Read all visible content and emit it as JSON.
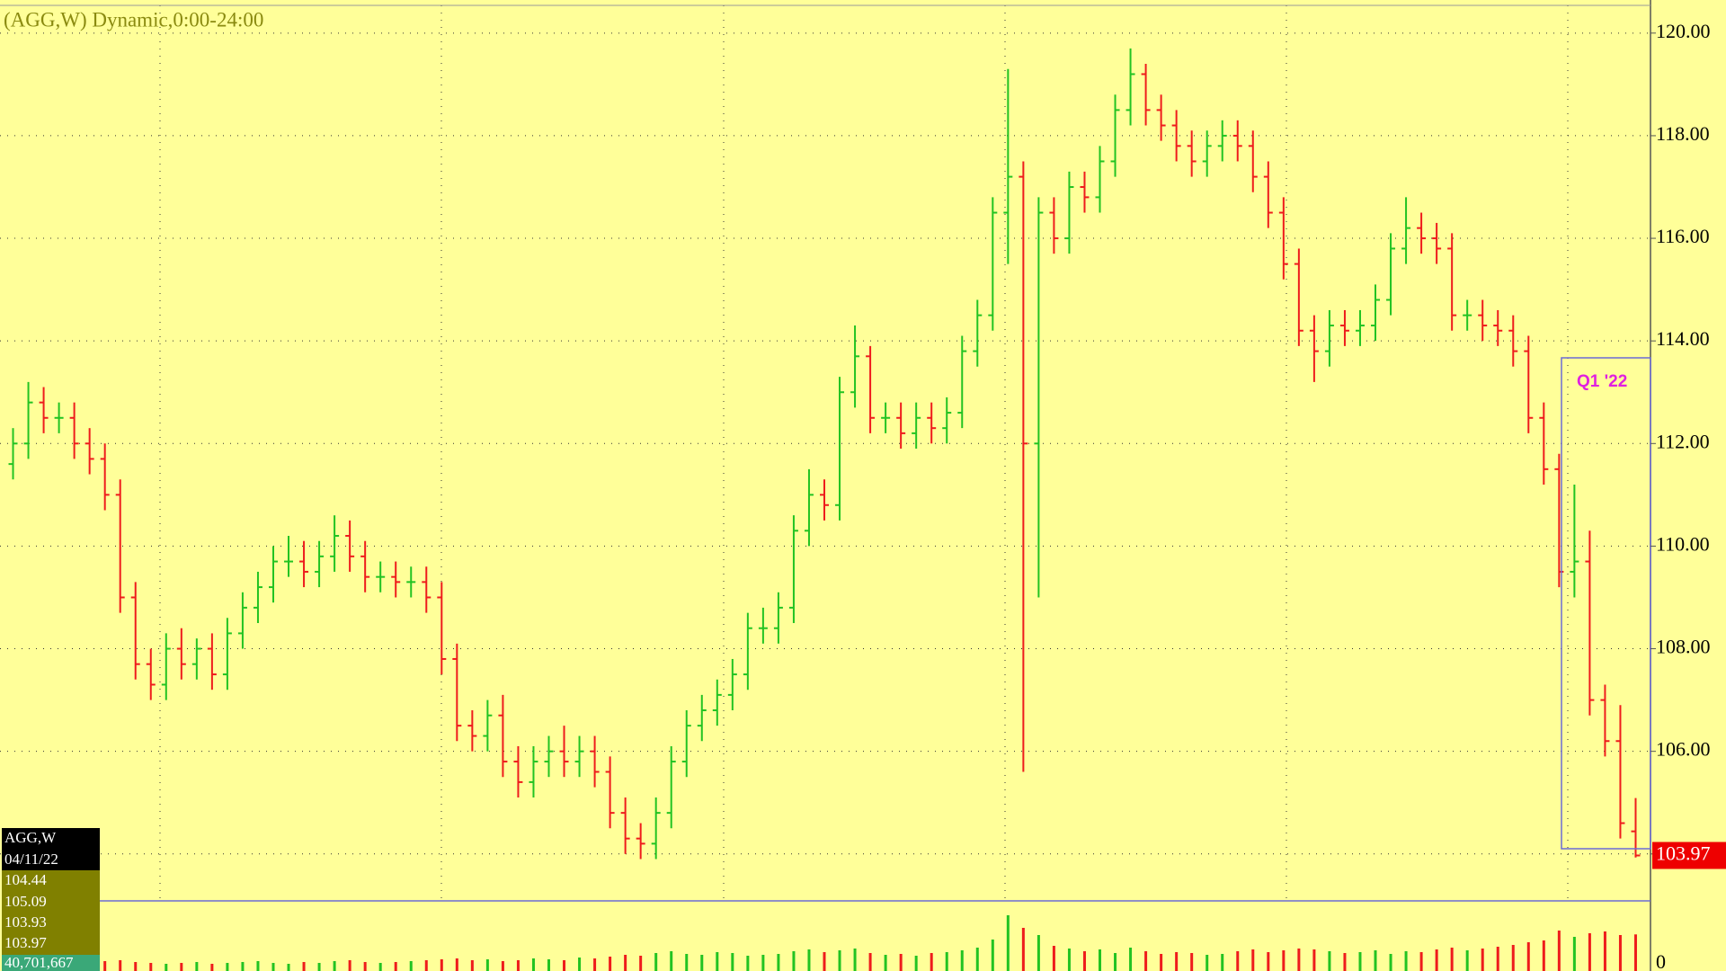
{
  "chart_data": {
    "type": "ohlc",
    "title": "(AGG,W) Dynamic,0:00-24:00",
    "annotation": "Q1 '22",
    "info_box": {
      "symbol": "AGG,W",
      "date": "04/11/22",
      "volume_label": "40,701,667"
    },
    "up_color": "#22c322",
    "down_color": "#ee1c1c",
    "grid": true,
    "ylim": [
      103.12,
      120.54
    ],
    "yticks": [
      {
        "value": 104,
        "label": "104.00"
      },
      {
        "value": 106,
        "label": "106.00"
      },
      {
        "value": 108,
        "label": "108.00"
      },
      {
        "value": 110,
        "label": "110.00"
      },
      {
        "value": 112,
        "label": "112.00"
      },
      {
        "value": 114,
        "label": "114.00"
      },
      {
        "value": 116,
        "label": "116.00"
      },
      {
        "value": 118,
        "label": "118.00"
      },
      {
        "value": 120,
        "label": "120.00"
      }
    ],
    "y2lim": [
      0,
      75000000
    ],
    "y2ticks": [
      0
    ],
    "open": [
      111.6,
      112.0,
      112.8,
      112.5,
      112.5,
      112.0,
      111.7,
      111.0,
      109.0,
      107.7,
      107.3,
      108.0,
      107.7,
      108.0,
      107.5,
      108.3,
      108.8,
      109.2,
      109.7,
      109.7,
      109.5,
      109.8,
      110.2,
      109.8,
      109.4,
      109.4,
      109.3,
      109.3,
      109.0,
      107.8,
      106.5,
      106.3,
      106.7,
      105.8,
      105.4,
      105.8,
      106.0,
      105.8,
      106.0,
      105.6,
      104.8,
      104.3,
      104.2,
      104.8,
      105.8,
      106.5,
      106.8,
      107.1,
      107.5,
      108.4,
      108.4,
      108.8,
      110.3,
      111.0,
      110.8,
      113.0,
      113.7,
      112.5,
      112.5,
      112.2,
      112.5,
      112.3,
      112.6,
      113.8,
      114.5,
      116.5,
      117.2,
      112.0,
      116.5,
      116.0,
      117.0,
      116.8,
      117.5,
      118.5,
      119.2,
      118.5,
      118.2,
      117.8,
      117.5,
      117.8,
      118.0,
      117.8,
      117.2,
      116.5,
      115.5,
      114.2,
      113.8,
      114.3,
      114.2,
      114.3,
      114.8,
      115.8,
      116.2,
      116.0,
      115.8,
      114.5,
      114.5,
      114.3,
      114.2,
      113.8,
      112.5,
      111.5,
      109.5,
      109.7,
      107.0,
      106.2,
      104.44
    ],
    "high": [
      112.3,
      113.2,
      113.1,
      112.8,
      112.8,
      112.3,
      112.0,
      111.3,
      109.3,
      108.0,
      108.3,
      108.4,
      108.2,
      108.3,
      108.6,
      109.1,
      109.5,
      110.0,
      110.2,
      110.1,
      110.1,
      110.6,
      110.5,
      110.1,
      109.7,
      109.7,
      109.6,
      109.6,
      109.3,
      108.1,
      106.8,
      107.0,
      107.1,
      106.1,
      106.1,
      106.3,
      106.5,
      106.3,
      106.3,
      105.9,
      105.1,
      104.6,
      105.1,
      106.1,
      106.8,
      107.1,
      107.4,
      107.8,
      108.7,
      108.8,
      109.1,
      110.6,
      111.5,
      111.3,
      113.3,
      114.3,
      113.9,
      112.8,
      112.8,
      112.8,
      112.8,
      112.9,
      114.1,
      114.8,
      116.8,
      119.3,
      117.5,
      116.8,
      116.8,
      117.3,
      117.3,
      117.8,
      118.8,
      119.7,
      119.4,
      118.8,
      118.5,
      118.1,
      118.1,
      118.3,
      118.3,
      118.1,
      117.5,
      116.8,
      115.8,
      114.5,
      114.6,
      114.6,
      114.6,
      115.1,
      116.1,
      116.8,
      116.5,
      116.3,
      116.1,
      114.8,
      114.8,
      114.6,
      114.5,
      114.1,
      112.8,
      111.8,
      111.2,
      110.3,
      107.3,
      106.9,
      105.09
    ],
    "low": [
      111.3,
      111.7,
      112.2,
      112.2,
      111.7,
      111.4,
      110.7,
      108.7,
      107.4,
      107.0,
      107.0,
      107.4,
      107.4,
      107.2,
      107.2,
      108.0,
      108.5,
      108.9,
      109.4,
      109.2,
      109.2,
      109.5,
      109.5,
      109.1,
      109.1,
      109.0,
      109.0,
      108.7,
      107.5,
      106.2,
      106.0,
      106.0,
      105.5,
      105.1,
      105.1,
      105.5,
      105.5,
      105.5,
      105.3,
      104.5,
      104.0,
      103.9,
      103.9,
      104.5,
      105.5,
      106.2,
      106.5,
      106.8,
      107.2,
      108.1,
      108.1,
      108.5,
      110.0,
      110.5,
      110.5,
      112.7,
      112.2,
      112.2,
      111.9,
      111.9,
      112.0,
      112.0,
      112.3,
      113.5,
      114.2,
      115.5,
      105.6,
      109.0,
      115.7,
      115.7,
      116.5,
      116.5,
      117.2,
      118.2,
      118.2,
      117.9,
      117.5,
      117.2,
      117.2,
      117.5,
      117.5,
      116.9,
      116.2,
      115.2,
      113.9,
      113.2,
      113.5,
      113.9,
      113.9,
      114.0,
      114.5,
      115.5,
      115.7,
      115.5,
      114.2,
      114.2,
      114.0,
      113.9,
      113.5,
      112.2,
      111.2,
      109.2,
      109.0,
      106.7,
      105.9,
      104.3,
      103.93
    ],
    "close": [
      112.0,
      112.8,
      112.5,
      112.5,
      112.0,
      111.7,
      111.0,
      109.0,
      107.7,
      107.3,
      108.0,
      107.7,
      108.0,
      107.5,
      108.3,
      108.8,
      109.2,
      109.7,
      109.7,
      109.5,
      109.8,
      110.2,
      109.8,
      109.4,
      109.4,
      109.3,
      109.3,
      109.0,
      107.8,
      106.5,
      106.3,
      106.7,
      105.8,
      105.4,
      105.8,
      106.0,
      105.8,
      106.0,
      105.6,
      104.8,
      104.3,
      104.2,
      104.8,
      105.8,
      106.5,
      106.8,
      107.1,
      107.5,
      108.4,
      108.4,
      108.8,
      110.3,
      111.0,
      110.8,
      113.0,
      113.7,
      112.5,
      112.5,
      112.2,
      112.5,
      112.3,
      112.6,
      113.8,
      114.5,
      116.5,
      117.2,
      112.0,
      116.5,
      116.0,
      117.0,
      116.8,
      117.5,
      118.5,
      119.2,
      118.5,
      118.2,
      117.8,
      117.5,
      117.8,
      118.0,
      117.8,
      117.2,
      116.5,
      115.5,
      114.2,
      113.8,
      114.3,
      114.2,
      114.3,
      114.8,
      115.8,
      116.2,
      116.0,
      115.8,
      114.5,
      114.5,
      114.3,
      114.2,
      113.8,
      112.5,
      111.5,
      109.5,
      109.7,
      107.0,
      106.2,
      104.6,
      103.97
    ],
    "volume": [
      8000000,
      9000000,
      7000000,
      10000000,
      8000000,
      9000000,
      11000000,
      12000000,
      10000000,
      9000000,
      8000000,
      9000000,
      10000000,
      8000000,
      9000000,
      10000000,
      11000000,
      9000000,
      8000000,
      10000000,
      9000000,
      11000000,
      12000000,
      10000000,
      9000000,
      10000000,
      11000000,
      12000000,
      13000000,
      14000000,
      12000000,
      13000000,
      11000000,
      12000000,
      14000000,
      13000000,
      12000000,
      15000000,
      14000000,
      16000000,
      18000000,
      17000000,
      20000000,
      22000000,
      19000000,
      18000000,
      21000000,
      20000000,
      17000000,
      18000000,
      19000000,
      22000000,
      24000000,
      21000000,
      23000000,
      25000000,
      20000000,
      18000000,
      19000000,
      17000000,
      20000000,
      21000000,
      23000000,
      26000000,
      35000000,
      62000000,
      48000000,
      40000000,
      28000000,
      25000000,
      22000000,
      24000000,
      20000000,
      26000000,
      22000000,
      19000000,
      21000000,
      20000000,
      18000000,
      19000000,
      22000000,
      24000000,
      21000000,
      23000000,
      25000000,
      24000000,
      22000000,
      20000000,
      21000000,
      23000000,
      19000000,
      22000000,
      21000000,
      24000000,
      26000000,
      23000000,
      25000000,
      27000000,
      29000000,
      32000000,
      34000000,
      45000000,
      38000000,
      42000000,
      44000000,
      40000000,
      40701667
    ]
  }
}
